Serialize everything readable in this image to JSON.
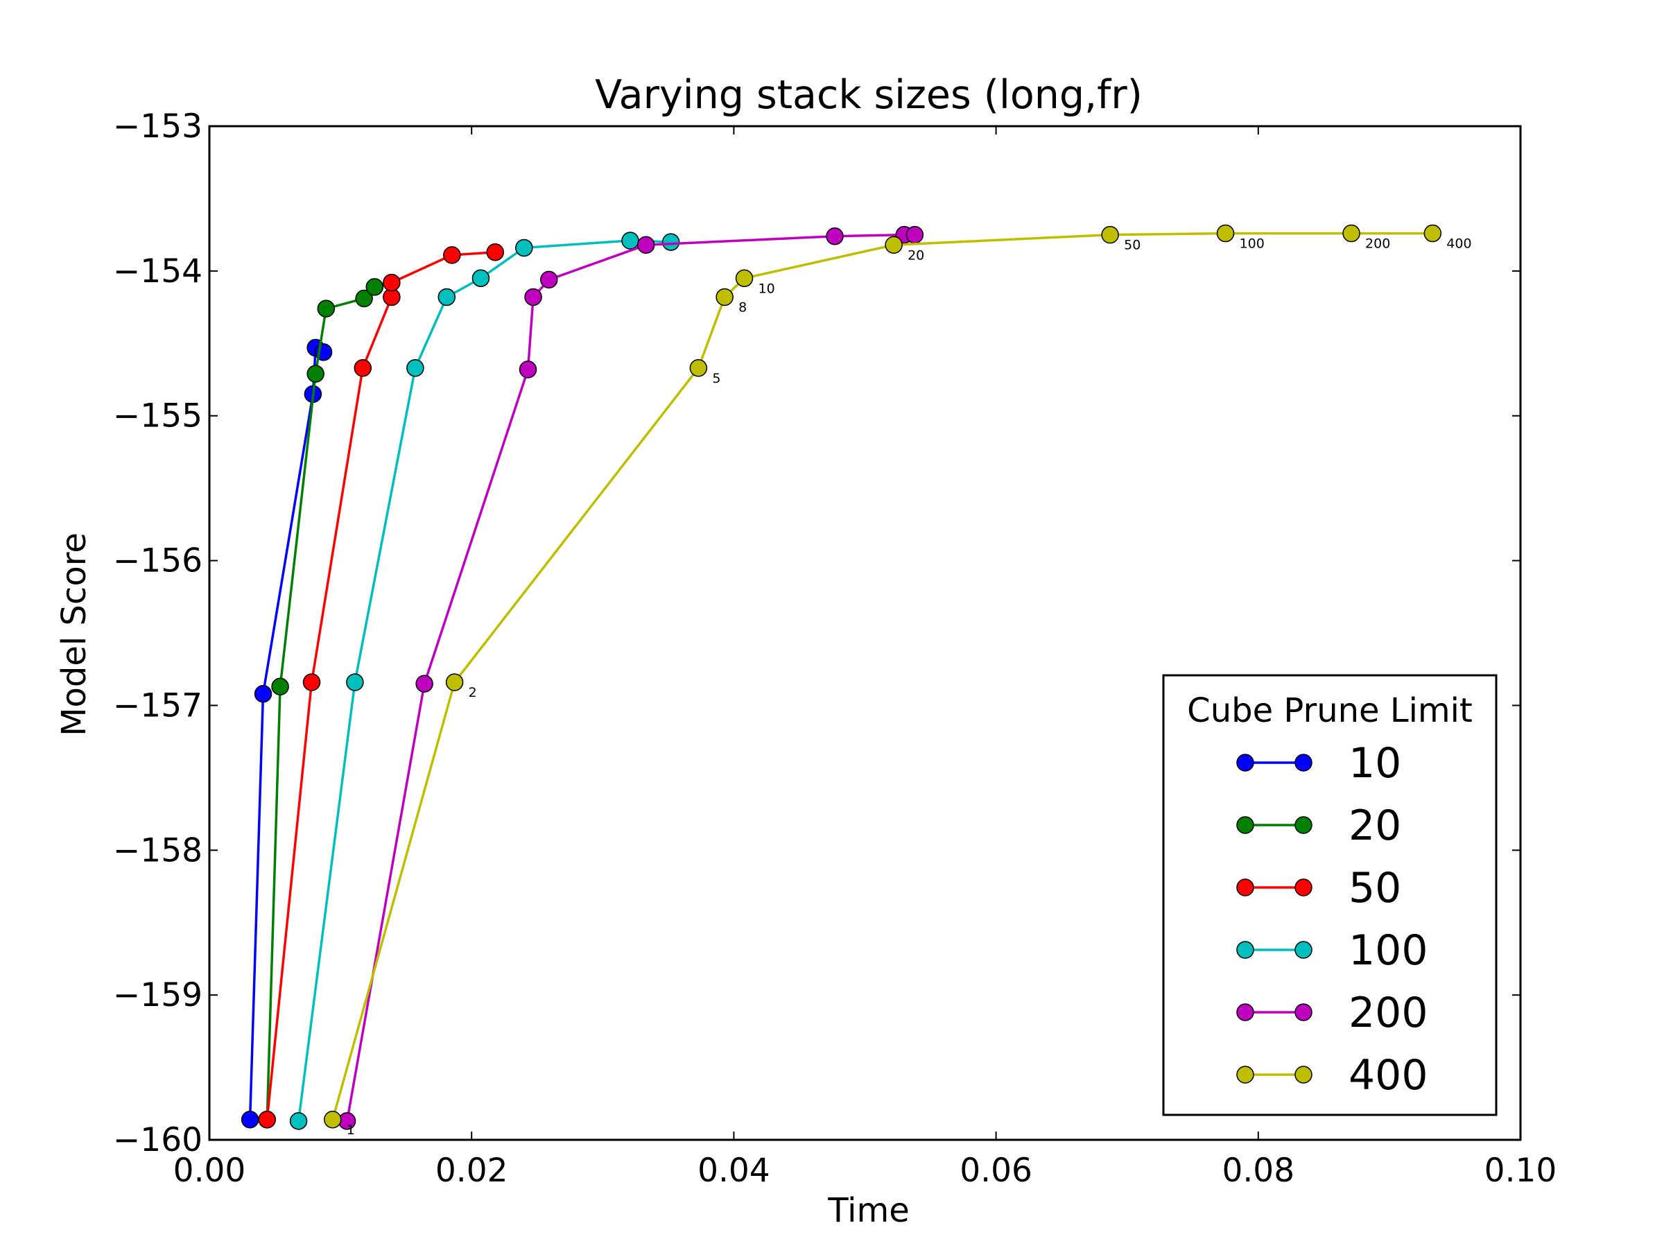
{
  "chart_data": {
    "type": "line",
    "title": "Varying stack sizes (long,fr)",
    "xlabel": "Time",
    "ylabel": "Model Score",
    "xlim": [
      0.0,
      0.1
    ],
    "ylim": [
      -160,
      -153
    ],
    "xticks": [
      0.0,
      0.02,
      0.04,
      0.06,
      0.08,
      0.1
    ],
    "xtick_labels": [
      "0.00",
      "0.02",
      "0.04",
      "0.06",
      "0.08",
      "0.10"
    ],
    "yticks": [
      -160,
      -159,
      -158,
      -157,
      -156,
      -155,
      -154,
      -153
    ],
    "ytick_labels": [
      "−160",
      "−159",
      "−158",
      "−157",
      "−156",
      "−155",
      "−154",
      "−153"
    ],
    "grid": false,
    "legend": {
      "title": "Cube Prune Limit",
      "placement": "lower-right"
    },
    "series": [
      {
        "name": "10",
        "color": "#0000ff",
        "x": [
          0.0031,
          0.0041,
          0.0079,
          0.0081,
          0.0087
        ],
        "y": [
          -159.86,
          -156.92,
          -154.85,
          -154.53,
          -154.56
        ]
      },
      {
        "name": "20",
        "color": "#008000",
        "x": [
          0.0044,
          0.0054,
          0.0081,
          0.0089,
          0.0118,
          0.0126
        ],
        "y": [
          -159.86,
          -156.87,
          -154.71,
          -154.26,
          -154.19,
          -154.11
        ]
      },
      {
        "name": "50",
        "color": "#ff0000",
        "x": [
          0.0044,
          0.0078,
          0.0117,
          0.0139,
          0.0139,
          0.0185,
          0.0218
        ],
        "y": [
          -159.86,
          -156.84,
          -154.67,
          -154.18,
          -154.08,
          -153.89,
          -153.87
        ]
      },
      {
        "name": "100",
        "color": "#00bfbf",
        "x": [
          0.0068,
          0.0111,
          0.0157,
          0.0181,
          0.0207,
          0.024,
          0.0321,
          0.0352
        ],
        "y": [
          -159.87,
          -156.84,
          -154.67,
          -154.18,
          -154.05,
          -153.84,
          -153.79,
          -153.8
        ]
      },
      {
        "name": "200",
        "color": "#bf00bf",
        "x": [
          0.0105,
          0.0164,
          0.0243,
          0.0247,
          0.0259,
          0.0333,
          0.0477,
          0.053,
          0.0538
        ],
        "y": [
          -159.87,
          -156.85,
          -154.68,
          -154.18,
          -154.06,
          -153.82,
          -153.76,
          -153.75,
          -153.75
        ]
      },
      {
        "name": "400",
        "color": "#bfbf00",
        "x": [
          0.0094,
          0.0187,
          0.0373,
          0.0393,
          0.0408,
          0.0522,
          0.0687,
          0.0775,
          0.0871,
          0.0933
        ],
        "y": [
          -159.86,
          -156.84,
          -154.67,
          -154.18,
          -154.05,
          -153.82,
          -153.75,
          -153.74,
          -153.74,
          -153.74
        ],
        "point_labels": [
          "1",
          "2",
          "5",
          "8",
          "10",
          "20",
          "50",
          "100",
          "200",
          "400"
        ]
      }
    ]
  }
}
